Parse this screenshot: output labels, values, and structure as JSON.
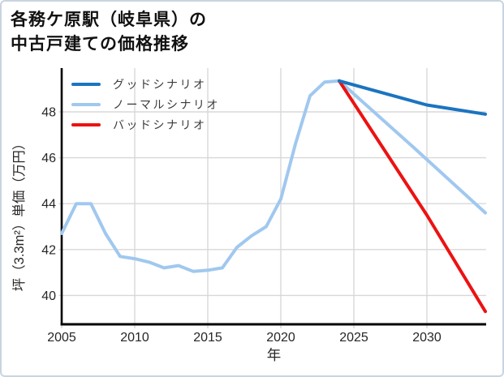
{
  "title": {
    "line1": "各務ケ原駅（岐阜県）の",
    "line2": "中古戸建ての価格推移"
  },
  "colors": {
    "good": "#1b74c0",
    "normal": "#a0c8ef",
    "bad": "#ec1212",
    "grid": "#d8d8d8",
    "axis": "#000000",
    "tick_text": "#262626",
    "legend_text": "#3a3a3a",
    "frame_border": "#c9d5e0"
  },
  "chart_data": {
    "type": "line",
    "title": "各務ケ原駅（岐阜県）の中古戸建ての価格推移",
    "xlabel": "年",
    "ylabel": "坪（3.3m²）単価（万円）",
    "xlim": [
      2005,
      2034.1
    ],
    "ylim": [
      38.7,
      49.9
    ],
    "x_ticks": [
      2005,
      2010,
      2015,
      2020,
      2025,
      2030
    ],
    "y_ticks": [
      40,
      42,
      44,
      46,
      48
    ],
    "grid": true,
    "legend_position": "upper-left",
    "series": [
      {
        "key": "good-scenario",
        "name": "グッドシナリオ",
        "color": "#1b74c0",
        "x": [
          2024,
          2030,
          2034
        ],
        "y": [
          49.35,
          48.3,
          47.9
        ]
      },
      {
        "key": "normal-scenario",
        "name": "ノーマルシナリオ",
        "color": "#a0c8ef",
        "x": [
          2005,
          2006,
          2007,
          2008,
          2009,
          2010,
          2011,
          2012,
          2013,
          2014,
          2015,
          2016,
          2017,
          2018,
          2019,
          2020,
          2021,
          2022,
          2023,
          2024,
          2029,
          2034
        ],
        "y": [
          42.7,
          44.0,
          44.0,
          42.7,
          41.7,
          41.6,
          41.45,
          41.2,
          41.3,
          41.05,
          41.1,
          41.2,
          42.1,
          42.6,
          43.0,
          44.2,
          46.6,
          48.7,
          49.3,
          49.35,
          46.5,
          43.6
        ]
      },
      {
        "key": "bad-scenario",
        "name": "バッドシナリオ",
        "color": "#ec1212",
        "x": [
          2024,
          2030,
          2034
        ],
        "y": [
          49.35,
          43.5,
          39.3
        ]
      }
    ]
  }
}
